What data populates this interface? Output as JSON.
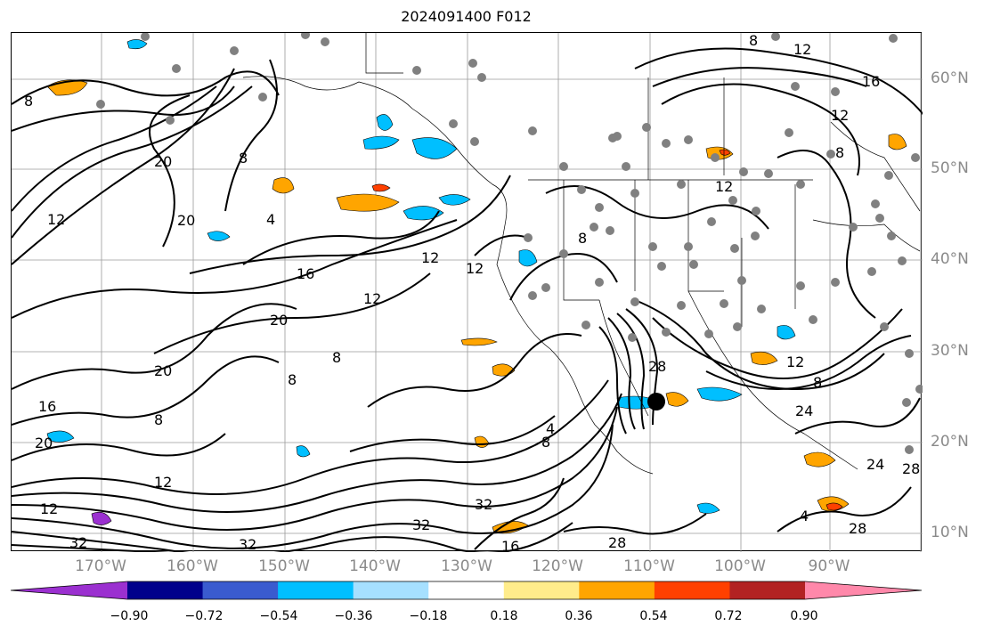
{
  "title": "2024091400 F012",
  "map": {
    "longitude_labels": [
      "170°W",
      "160°W",
      "150°W",
      "140°W",
      "130°W",
      "120°W",
      "110°W",
      "100°W",
      "90°W"
    ],
    "latitude_labels": [
      "60°N",
      "50°N",
      "40°N",
      "30°N",
      "20°N",
      "10°N"
    ],
    "gridlines": true,
    "contour_line_color": "#000000",
    "contour_labels": [
      "8",
      "12",
      "16",
      "20",
      "24",
      "28",
      "32",
      "4"
    ],
    "station_marker_color": "#808080"
  },
  "colorbar": {
    "tick_labels": [
      "−0.90",
      "−0.72",
      "−0.54",
      "−0.36",
      "−0.18",
      "0.18",
      "0.36",
      "0.54",
      "0.72",
      "0.90"
    ],
    "colors": [
      "#9b30d0",
      "#00008b",
      "#3a5bcf",
      "#00bfff",
      "#a6e0ff",
      "#ffffff",
      "#ffec8b",
      "#ffa500",
      "#ff4000",
      "#b22222",
      "#ff88aa"
    ],
    "extend": "both"
  }
}
